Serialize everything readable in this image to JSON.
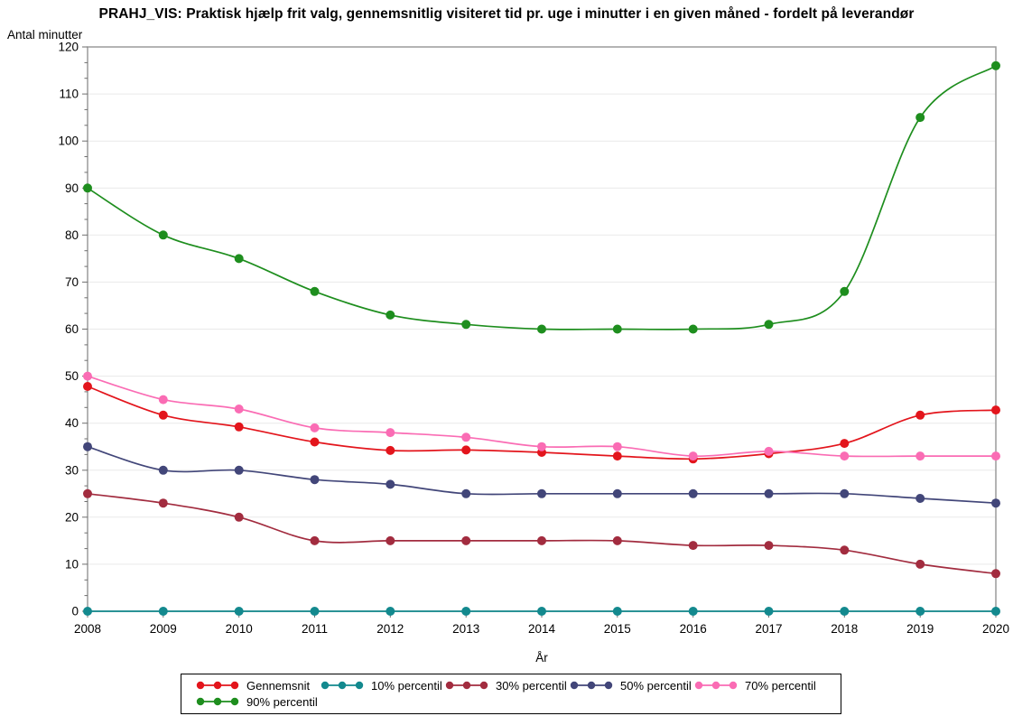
{
  "chart_data": {
    "type": "line",
    "title": "PRAHJ_VIS: Praktisk hjælp frit valg, gennemsnitlig visiteret tid pr. uge i minutter i en given måned - fordelt på leverandør",
    "ylabel": "Antal minutter",
    "xlabel": "År",
    "x": [
      2008,
      2009,
      2010,
      2011,
      2012,
      2013,
      2014,
      2015,
      2016,
      2017,
      2018,
      2019,
      2020
    ],
    "ylim": [
      0,
      120
    ],
    "ytick_step": 10,
    "grid": "horizontal",
    "legend_position": "bottom",
    "series": [
      {
        "name": "Gennemsnit",
        "color": "#e3151c",
        "values": [
          47.8,
          41.7,
          39.2,
          36,
          34.2,
          34.3,
          33.8,
          33,
          32.4,
          33.5,
          35.7,
          41.7,
          42.8
        ]
      },
      {
        "name": "10% percentil",
        "color": "#13898e",
        "values": [
          0,
          0,
          0,
          0,
          0,
          0,
          0,
          0,
          0,
          0,
          0,
          0,
          0
        ]
      },
      {
        "name": "30% percentil",
        "color": "#a22c3f",
        "values": [
          25,
          23,
          20,
          15,
          15,
          15,
          15,
          15,
          14,
          14,
          13,
          10,
          8
        ]
      },
      {
        "name": "50% percentil",
        "color": "#424679",
        "values": [
          35,
          30,
          30,
          28,
          27,
          25,
          25,
          25,
          25,
          25,
          25,
          24,
          23
        ]
      },
      {
        "name": "70% percentil",
        "color": "#fa6cb4",
        "values": [
          50,
          45,
          43,
          39,
          38,
          37,
          35,
          35,
          33,
          34,
          33,
          33,
          33
        ]
      },
      {
        "name": "90% percentil",
        "color": "#1e8e1e",
        "values": [
          90,
          80,
          75,
          68,
          63,
          61,
          60,
          60,
          60,
          61,
          68,
          105,
          116
        ]
      }
    ],
    "frame_color": "#9b9b9b",
    "gridline_color": "#e9e9e9",
    "tick_color": "#6e6e6e"
  }
}
